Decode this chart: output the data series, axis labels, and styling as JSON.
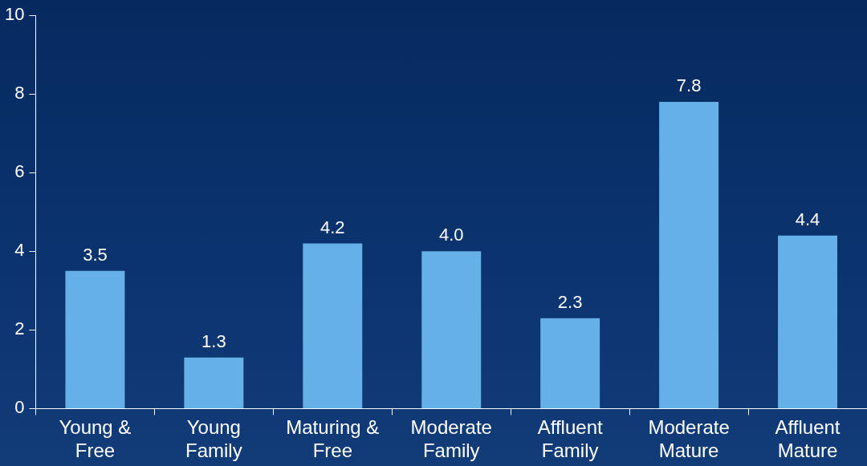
{
  "chart_data": {
    "type": "bar",
    "categories": [
      "Young & Free",
      "Young Family",
      "Maturing & Free",
      "Moderate Family",
      "Affluent Family",
      "Moderate Mature",
      "Affluent Mature"
    ],
    "values": [
      3.5,
      1.3,
      4.2,
      4.0,
      2.3,
      7.8,
      4.4
    ],
    "value_labels": [
      "3.5",
      "1.3",
      "4.2",
      "4.0",
      "2.3",
      "7.8",
      "4.4"
    ],
    "color": "#65b0e6",
    "ylim": [
      0,
      10
    ],
    "yticks": [
      0,
      2,
      4,
      6,
      8,
      10
    ],
    "grid": false,
    "legend": false
  }
}
